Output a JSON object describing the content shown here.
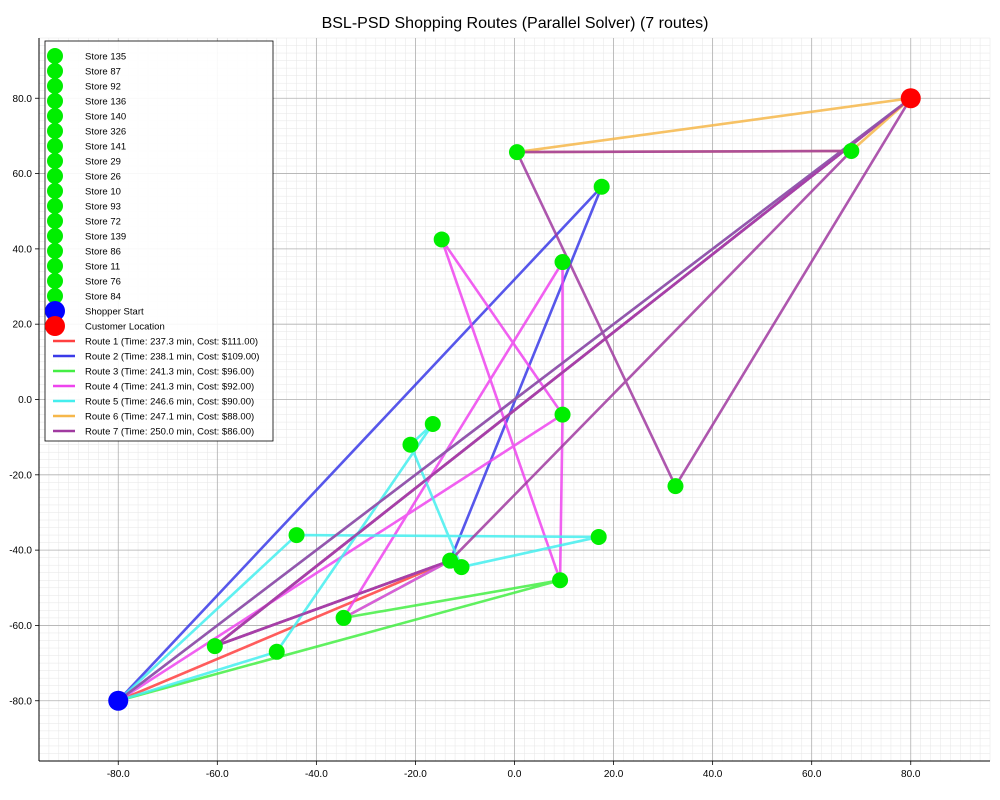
{
  "chart_data": {
    "type": "scatter",
    "title": "BSL-PSD Shopping Routes (Parallel Solver) (7 routes)",
    "xlim": [
      -96,
      96
    ],
    "ylim": [
      -96,
      96
    ],
    "xticks": [
      -80,
      -60,
      -40,
      -20,
      0,
      20,
      40,
      60,
      80
    ],
    "yticks": [
      -80,
      -60,
      -40,
      -20,
      0,
      20,
      40,
      60,
      80
    ],
    "xtick_labels": [
      "-80.0",
      "-60.0",
      "-40.0",
      "-20.0",
      "0.0",
      "20.0",
      "40.0",
      "60.0",
      "80.0"
    ],
    "ytick_labels": [
      "-80.0",
      "-60.0",
      "-40.0",
      "-20.0",
      "0.0",
      "20.0",
      "40.0",
      "60.0",
      "80.0"
    ],
    "grid": true,
    "minor_grid": true,
    "legend_position": "upper-left",
    "stores": [
      {
        "name": "Store 135",
        "x": 0.5,
        "y": 65.7
      },
      {
        "name": "Store 87",
        "x": 68.0,
        "y": 66.0
      },
      {
        "name": "Store 92",
        "x": 17.6,
        "y": 56.5
      },
      {
        "name": "Store 136",
        "x": -14.7,
        "y": 42.5
      },
      {
        "name": "Store 140",
        "x": 9.7,
        "y": 36.5
      },
      {
        "name": "Store 326",
        "x": 9.7,
        "y": -4.0
      },
      {
        "name": "Store 141",
        "x": -16.5,
        "y": -6.5
      },
      {
        "name": "Store 29",
        "x": -21.0,
        "y": -12.0
      },
      {
        "name": "Store 26",
        "x": 32.5,
        "y": -23.0
      },
      {
        "name": "Store 10",
        "x": -44.0,
        "y": -36.0
      },
      {
        "name": "Store 93",
        "x": 17.0,
        "y": -36.5
      },
      {
        "name": "Store 72",
        "x": -13.0,
        "y": -42.8
      },
      {
        "name": "Store 139",
        "x": -10.7,
        "y": -44.5
      },
      {
        "name": "Store 86",
        "x": 9.2,
        "y": -48.0
      },
      {
        "name": "Store 11",
        "x": -34.5,
        "y": -58.0
      },
      {
        "name": "Store 76",
        "x": -60.5,
        "y": -65.5
      },
      {
        "name": "Store 84",
        "x": -48.0,
        "y": -67.0
      }
    ],
    "shopper_start": {
      "name": "Shopper Start",
      "x": -80.0,
      "y": -80.0,
      "color": "#0000ff"
    },
    "customer_location": {
      "name": "Customer Location",
      "x": 80.0,
      "y": 80.0,
      "color": "#ff0000"
    },
    "store_color": "#00ee00",
    "series": [
      {
        "name": "Route 1 (Time: 237.3 min, Cost: $111.00)",
        "color": "#ff4040",
        "points": [
          [
            -80,
            -80
          ],
          [
            -13.0,
            -42.8
          ],
          [
            -60.5,
            -65.5
          ],
          [
            80,
            80
          ]
        ]
      },
      {
        "name": "Route 2 (Time: 238.1 min, Cost: $109.00)",
        "color": "#3a3ae8",
        "points": [
          [
            -80,
            -80
          ],
          [
            17.6,
            56.5
          ],
          [
            -13.0,
            -42.8
          ],
          [
            -60.5,
            -65.5
          ],
          [
            80,
            80
          ]
        ]
      },
      {
        "name": "Route 3 (Time: 241.3 min, Cost: $96.00)",
        "color": "#44ee44",
        "points": [
          [
            -80,
            -80
          ],
          [
            9.2,
            -48.0
          ],
          [
            -34.5,
            -58.0
          ],
          [
            -13.0,
            -42.8
          ],
          [
            -60.5,
            -65.5
          ],
          [
            80,
            80
          ]
        ]
      },
      {
        "name": "Route 4 (Time: 241.3 min, Cost: $92.00)",
        "color": "#ee44ee",
        "points": [
          [
            -80,
            -80
          ],
          [
            9.7,
            -4.0
          ],
          [
            9.2,
            -48.0
          ],
          [
            -14.7,
            42.5
          ],
          [
            9.7,
            -4.0
          ],
          [
            9.7,
            36.5
          ],
          [
            -34.5,
            -58.0
          ],
          [
            -13.0,
            -42.8
          ],
          [
            -60.5,
            -65.5
          ],
          [
            80,
            80
          ]
        ]
      },
      {
        "name": "Route 5 (Time: 246.6 min, Cost: $90.00)",
        "color": "#44eeee",
        "points": [
          [
            -80,
            -80
          ],
          [
            -48.0,
            -67.0
          ],
          [
            -16.5,
            -6.5
          ],
          [
            -21.0,
            -12.0
          ],
          [
            -10.7,
            -44.5
          ],
          [
            17.0,
            -36.5
          ],
          [
            -44.0,
            -36.0
          ],
          [
            -80,
            -80
          ],
          [
            80,
            80
          ]
        ]
      },
      {
        "name": "Route 6 (Time: 247.1 min, Cost: $88.00)",
        "color": "#f6b74a",
        "points": [
          [
            80,
            80
          ],
          [
            0.5,
            65.7
          ],
          [
            68.0,
            66.0
          ],
          [
            80,
            80
          ]
        ]
      },
      {
        "name": "Route 7 (Time: 250.0 min, Cost: $86.00)",
        "color": "#a03aa0",
        "points": [
          [
            -80,
            -80
          ],
          [
            80,
            80
          ],
          [
            32.5,
            -23.0
          ],
          [
            0.5,
            65.7
          ],
          [
            68.0,
            66.0
          ],
          [
            -13.0,
            -42.8
          ],
          [
            -60.5,
            -65.5
          ],
          [
            80,
            80
          ]
        ]
      }
    ]
  }
}
